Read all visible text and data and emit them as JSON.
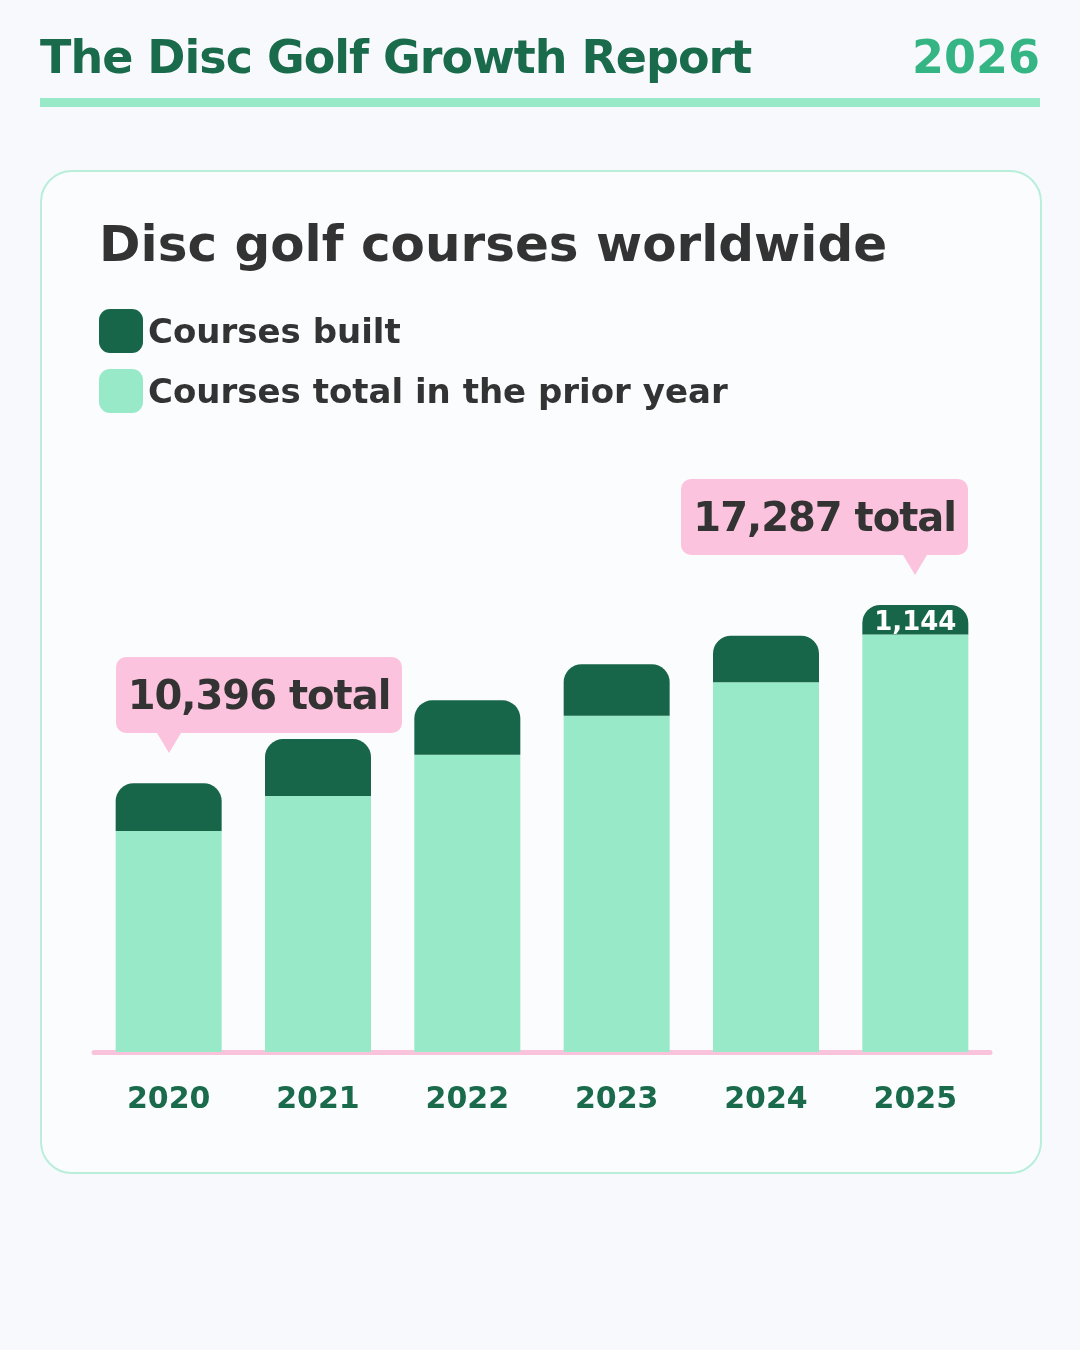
{
  "chart_data": {
    "type": "bar",
    "title": "Disc golf courses worldwide",
    "categories": [
      "2020",
      "2021",
      "2022",
      "2023",
      "2024",
      "2025"
    ],
    "tick_labels": "x",
    "stacked": true,
    "legend": "top left",
    "series": [
      {
        "name": "Courses total in the prior year",
        "color": "#98e9c8",
        "values": [
          8546,
          9900,
          11500,
          13000,
          14300,
          16143
        ]
      },
      {
        "name": "Courses built",
        "color": "#17664a",
        "values": [
          1850,
          2200,
          2100,
          2000,
          1800,
          1144
        ],
        "value_labels": [
          null,
          null,
          null,
          null,
          null,
          "1,144"
        ]
      }
    ],
    "annotations": [
      "The Disc Golf Growth Report",
      "2026",
      {
        "text": "10,396 total",
        "x": "2020",
        "y": 10396
      },
      {
        "text": "17,287 total",
        "x": "2025",
        "y": 17287
      }
    ]
  }
}
